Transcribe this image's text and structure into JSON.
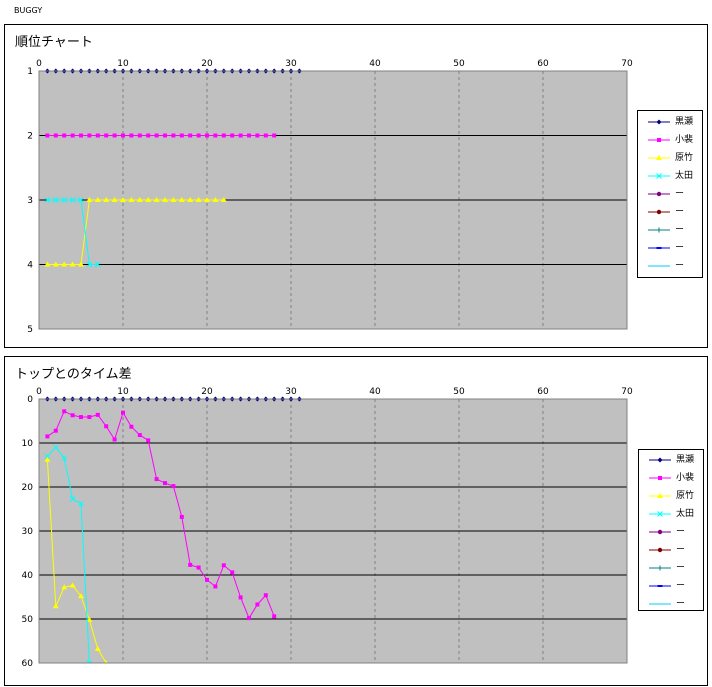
{
  "page": {
    "title": "BUGGY"
  },
  "chart_data": [
    {
      "type": "line",
      "title": "順位チャート",
      "xlim": [
        0,
        70
      ],
      "x_ticks": [
        "0",
        "10",
        "20",
        "30",
        "40",
        "50",
        "60",
        "70"
      ],
      "ylim": [
        1,
        5
      ],
      "y_ticks": [
        "1",
        "2",
        "3",
        "4",
        "5"
      ],
      "y_inverted": true,
      "grid": true,
      "legend_position": "right",
      "series": [
        {
          "name": "黒瀬",
          "color": "#000080",
          "marker": "diamond",
          "x": [
            1,
            2,
            3,
            4,
            5,
            6,
            7,
            8,
            9,
            10,
            11,
            12,
            13,
            14,
            15,
            16,
            17,
            18,
            19,
            20,
            21,
            22,
            23,
            24,
            25,
            26,
            27,
            28,
            29,
            30,
            31
          ],
          "y": [
            1,
            1,
            1,
            1,
            1,
            1,
            1,
            1,
            1,
            1,
            1,
            1,
            1,
            1,
            1,
            1,
            1,
            1,
            1,
            1,
            1,
            1,
            1,
            1,
            1,
            1,
            1,
            1,
            1,
            1,
            1
          ]
        },
        {
          "name": "小裴",
          "color": "#ff00ff",
          "marker": "square",
          "x": [
            1,
            2,
            3,
            4,
            5,
            6,
            7,
            8,
            9,
            10,
            11,
            12,
            13,
            14,
            15,
            16,
            17,
            18,
            19,
            20,
            21,
            22,
            23,
            24,
            25,
            26,
            27,
            28
          ],
          "y": [
            2,
            2,
            2,
            2,
            2,
            2,
            2,
            2,
            2,
            2,
            2,
            2,
            2,
            2,
            2,
            2,
            2,
            2,
            2,
            2,
            2,
            2,
            2,
            2,
            2,
            2,
            2,
            2
          ]
        },
        {
          "name": "原竹",
          "color": "#ffff00",
          "marker": "triangle",
          "x": [
            1,
            2,
            3,
            4,
            5,
            6,
            7,
            8,
            9,
            10,
            11,
            12,
            13,
            14,
            15,
            16,
            17,
            18,
            19,
            20,
            21,
            22
          ],
          "y": [
            4,
            4,
            4,
            4,
            4,
            3,
            3,
            3,
            3,
            3,
            3,
            3,
            3,
            3,
            3,
            3,
            3,
            3,
            3,
            3,
            3,
            3
          ]
        },
        {
          "name": "太田",
          "color": "#00ffff",
          "marker": "x",
          "x": [
            1,
            2,
            3,
            4,
            5,
            6,
            7
          ],
          "y": [
            3,
            3,
            3,
            3,
            3,
            4,
            4
          ]
        },
        {
          "name": "ー",
          "color": "#800080",
          "marker": "circle",
          "x": [],
          "y": []
        },
        {
          "name": "ー",
          "color": "#800000",
          "marker": "circle",
          "x": [],
          "y": []
        },
        {
          "name": "ー",
          "color": "#008080",
          "marker": "plus",
          "x": [],
          "y": []
        },
        {
          "name": "ー",
          "color": "#0000ff",
          "marker": "dash",
          "x": [],
          "y": []
        },
        {
          "name": "ー",
          "color": "#00ccff",
          "marker": "none",
          "x": [],
          "y": []
        }
      ]
    },
    {
      "type": "line",
      "title": "トップとのタイム差",
      "xlim": [
        0,
        70
      ],
      "x_ticks": [
        "0",
        "10",
        "20",
        "30",
        "40",
        "50",
        "60",
        "70"
      ],
      "ylim": [
        0,
        60
      ],
      "y_ticks": [
        "0",
        "10",
        "20",
        "30",
        "40",
        "50",
        "60"
      ],
      "y_inverted": true,
      "grid": true,
      "legend_position": "right",
      "series": [
        {
          "name": "黒瀬",
          "color": "#000080",
          "marker": "diamond",
          "x": [
            1,
            2,
            3,
            4,
            5,
            6,
            7,
            8,
            9,
            10,
            11,
            12,
            13,
            14,
            15,
            16,
            17,
            18,
            19,
            20,
            21,
            22,
            23,
            24,
            25,
            26,
            27,
            28,
            29,
            30,
            31
          ],
          "y": [
            0,
            0,
            0,
            0,
            0,
            0,
            0,
            0,
            0,
            0,
            0,
            0,
            0,
            0,
            0,
            0,
            0,
            0,
            0,
            0,
            0,
            0,
            0,
            0,
            0,
            0,
            0,
            0,
            0,
            0,
            0
          ]
        },
        {
          "name": "小裴",
          "color": "#ff00ff",
          "marker": "square",
          "x": [
            1,
            2,
            3,
            4,
            5,
            6,
            7,
            8,
            9,
            10,
            11,
            12,
            13,
            14,
            15,
            16,
            17,
            18,
            19,
            20,
            21,
            22,
            23,
            24,
            25,
            26,
            27,
            28
          ],
          "y": [
            8.5,
            7.2,
            2.8,
            3.7,
            4.1,
            4.1,
            3.6,
            6.2,
            9.2,
            3.1,
            6.3,
            8.2,
            9.4,
            18.2,
            19.1,
            19.8,
            26.8,
            37.7,
            38.3,
            41.1,
            42.6,
            37.8,
            39.4,
            45.1,
            49.8,
            46.7,
            44.6,
            49.4
          ]
        },
        {
          "name": "原竹",
          "color": "#ffff00",
          "marker": "triangle",
          "x": [
            1,
            2,
            3,
            4,
            5,
            6,
            7,
            8
          ],
          "y": [
            13.8,
            47.1,
            42.8,
            42.4,
            44.8,
            50.2,
            56.8,
            60
          ]
        },
        {
          "name": "太田",
          "color": "#00ffff",
          "marker": "x",
          "x": [
            1,
            2,
            3,
            4,
            5,
            6
          ],
          "y": [
            13.0,
            11.0,
            13.4,
            22.7,
            23.8,
            60
          ]
        },
        {
          "name": "ー",
          "color": "#800080",
          "marker": "circle",
          "x": [],
          "y": []
        },
        {
          "name": "ー",
          "color": "#800000",
          "marker": "circle",
          "x": [],
          "y": []
        },
        {
          "name": "ー",
          "color": "#008080",
          "marker": "plus",
          "x": [],
          "y": []
        },
        {
          "name": "ー",
          "color": "#0000ff",
          "marker": "dash",
          "x": [],
          "y": []
        },
        {
          "name": "ー",
          "color": "#00ccff",
          "marker": "none",
          "x": [],
          "y": []
        }
      ]
    }
  ]
}
